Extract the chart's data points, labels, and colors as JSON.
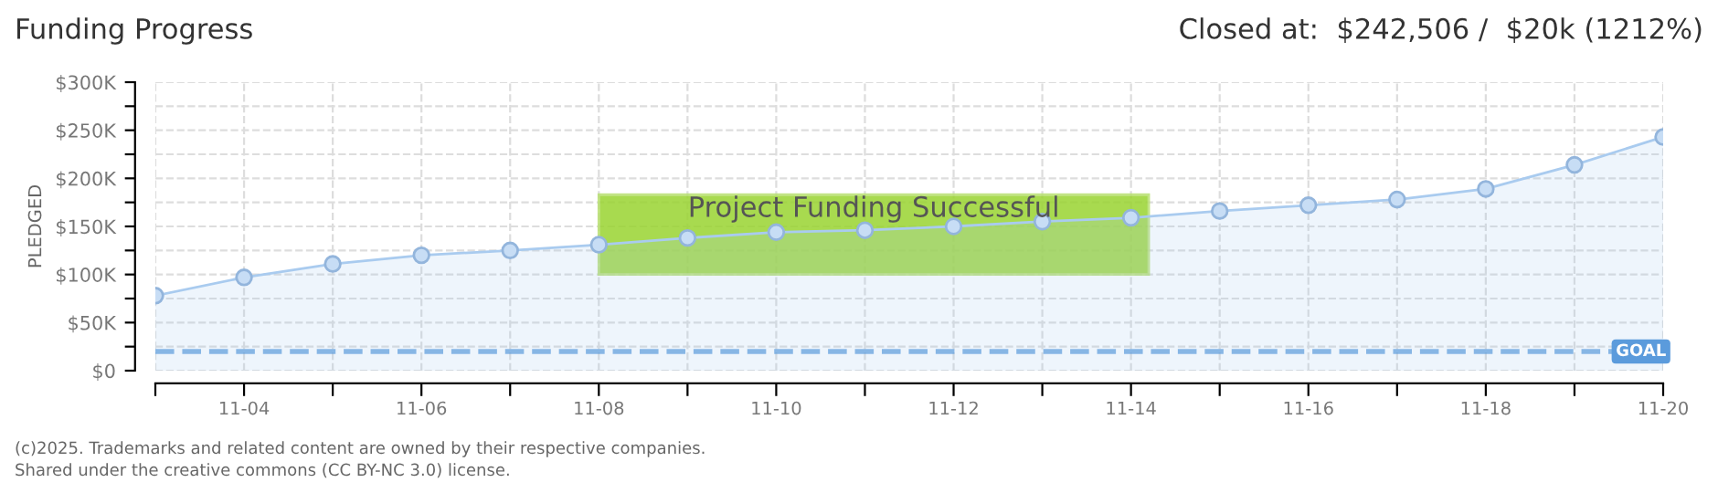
{
  "chart_data": {
    "type": "area",
    "title": "Funding Progress",
    "subtitle": "Closed at:  $242,506 /  $20k (1212%)",
    "ylabel": "PLEDGED",
    "annotations": [
      "Project Funding Successful",
      "(c)2025. Trademarks and related content are owned by their respective companies.",
      "Shared under the creative commons (CC BY-NC 3.0) license."
    ],
    "categories": [
      null,
      "11-04",
      null,
      "11-06",
      null,
      "11-08",
      null,
      "11-10",
      null,
      "11-12",
      null,
      "11-14",
      null,
      "11-16",
      null,
      "11-18",
      null,
      "11-20"
    ],
    "series": [
      {
        "color": "#a9cbef",
        "values": [
          78,
          97,
          111,
          120,
          125,
          131,
          138,
          144,
          146,
          150,
          155,
          159,
          166,
          172,
          178,
          189,
          214,
          243
        ]
      }
    ],
    "ylim": [
      0,
      300
    ],
    "yticks": [
      {
        "value": 0,
        "label": "$0"
      },
      {
        "value": 25,
        "label": null
      },
      {
        "value": 50,
        "label": "$50K"
      },
      {
        "value": 75,
        "label": null
      },
      {
        "value": 100,
        "label": "$100K"
      },
      {
        "value": 125,
        "label": null
      },
      {
        "value": 150,
        "label": "$150K"
      },
      {
        "value": 175,
        "label": null
      },
      {
        "value": 200,
        "label": "$200K"
      },
      {
        "value": 225,
        "label": null
      },
      {
        "value": 250,
        "label": "$250K"
      },
      {
        "value": 275,
        "label": null
      },
      {
        "value": 300,
        "label": "$300K"
      }
    ],
    "ref_lines": [
      {
        "axis": "y",
        "value": 20,
        "label": "GOAL",
        "color": "#5b9bdc",
        "line_style": "dashed"
      }
    ],
    "grid": true,
    "marker": "circle",
    "line_style": "solid"
  }
}
